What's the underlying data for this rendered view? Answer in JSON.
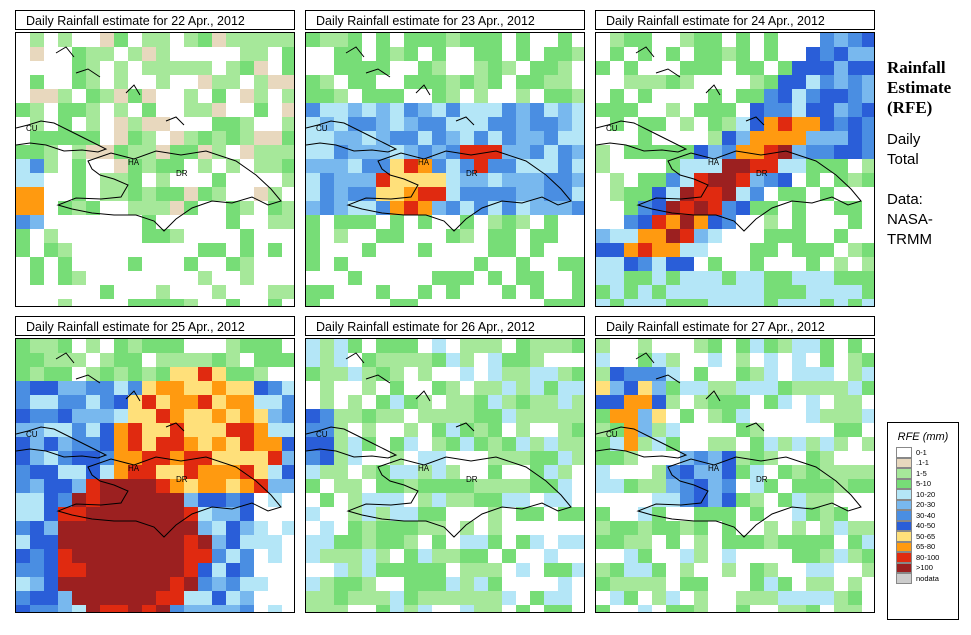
{
  "side": {
    "title_lines": [
      "Rainfall",
      "Estimate",
      "(RFE)"
    ],
    "period_lines": [
      "Daily",
      "Total"
    ],
    "source_lines": [
      "Data:",
      "NASA-",
      "TRMM"
    ]
  },
  "labels": {
    "cuba": "CU",
    "haiti": "HA",
    "dominican_republic": "DR"
  },
  "legend": {
    "title": "RFE (mm)",
    "items": [
      {
        "label": "0-1",
        "color": "#ffffff"
      },
      {
        "label": ".1-1",
        "color": "#e8d8be"
      },
      {
        "label": "1-5",
        "color": "#a6e89a"
      },
      {
        "label": "5-10",
        "color": "#77dd77"
      },
      {
        "label": "10-20",
        "color": "#b4e6f7"
      },
      {
        "label": "20-30",
        "color": "#78b8ee"
      },
      {
        "label": "30-40",
        "color": "#4a8ee2"
      },
      {
        "label": "40-50",
        "color": "#2a5ed8"
      },
      {
        "label": "50-65",
        "color": "#ffe07a"
      },
      {
        "label": "65-80",
        "color": "#ff9a10"
      },
      {
        "label": "80-100",
        "color": "#e02a10"
      },
      {
        "label": ">100",
        "color": "#9c2020"
      },
      {
        "label": "nodata",
        "color": "#cccccc"
      }
    ]
  },
  "panels": [
    {
      "title": "Daily Rainfall estimate for  22 Apr., 2012",
      "pattern": "scattered-light"
    },
    {
      "title": "Daily Rainfall estimate for  23 Apr., 2012",
      "pattern": "central-haiti-heavy"
    },
    {
      "title": "Daily Rainfall estimate for  24 Apr., 2012",
      "pattern": "diagonal-band"
    },
    {
      "title": "Daily Rainfall estimate for  25 Apr., 2012",
      "pattern": "extreme-south"
    },
    {
      "title": "Daily Rainfall estimate for  26 Apr., 2012",
      "pattern": "widespread-light"
    },
    {
      "title": "Daily Rainfall estimate for  27 Apr., 2012",
      "pattern": "western-moderate"
    }
  ]
}
